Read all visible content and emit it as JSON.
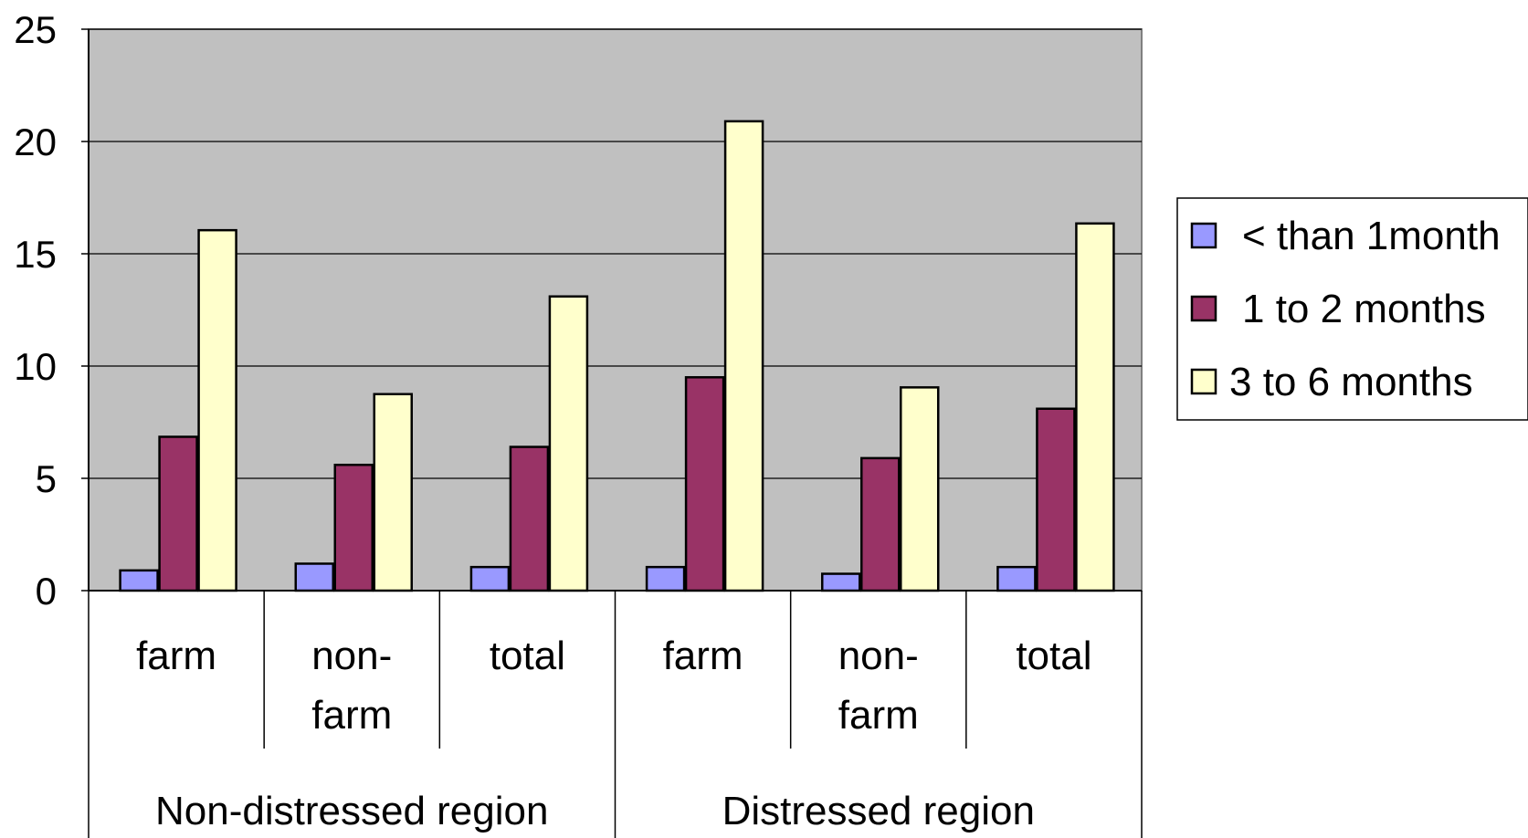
{
  "chart_data": {
    "type": "bar",
    "title": "",
    "xlabel": "",
    "ylabel": "",
    "ylim": [
      0,
      25
    ],
    "yticks": [
      "0",
      "5",
      "10",
      "15",
      "20",
      "25"
    ],
    "grid": true,
    "legend_position": "right",
    "groups": [
      {
        "label": "Non-distressed region",
        "categories": [
          [
            "farm"
          ],
          [
            "non-",
            "farm"
          ],
          [
            "total"
          ]
        ]
      },
      {
        "label": "Distressed region",
        "categories": [
          [
            "farm"
          ],
          [
            "non-",
            "farm"
          ],
          [
            "total"
          ]
        ]
      }
    ],
    "series": [
      {
        "name": "< than 1month",
        "color": "#9999ff",
        "values": [
          0.9,
          1.2,
          1.05,
          1.05,
          0.75,
          1.05
        ]
      },
      {
        "name": "1 to 2 months",
        "color": "#993366",
        "values": [
          6.85,
          5.6,
          6.4,
          9.5,
          5.9,
          8.1
        ]
      },
      {
        "name": "3 to 6 months",
        "color": "#ffffcc",
        "values": [
          16.05,
          8.75,
          13.1,
          20.9,
          9.05,
          16.35
        ]
      }
    ],
    "colors": {
      "plot_background": "#c0c0c0",
      "gridline": "#000000"
    }
  }
}
